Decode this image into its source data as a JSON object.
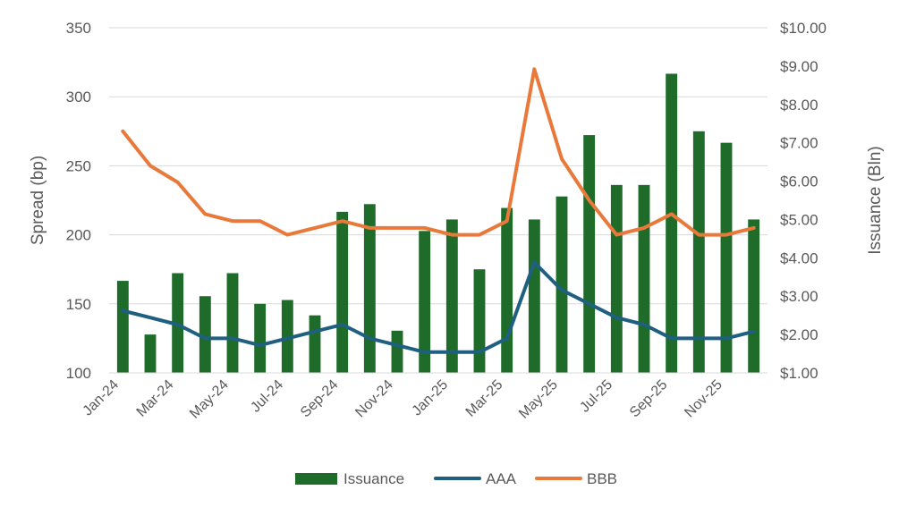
{
  "chart_data": {
    "type": "bar",
    "categories": [
      "Jan-24",
      "Feb-24",
      "Mar-24",
      "Apr-24",
      "May-24",
      "Jun-24",
      "Jul-24",
      "Aug-24",
      "Sep-24",
      "Oct-24",
      "Nov-24",
      "Dec-24",
      "Jan-25",
      "Feb-25",
      "Mar-25",
      "Apr-25",
      "May-25",
      "Jun-25",
      "Jul-25",
      "Aug-25",
      "Sep-25",
      "Oct-25",
      "Nov-25",
      "Dec-25"
    ],
    "x_tick_labels": [
      "Jan-24",
      "Mar-24",
      "May-24",
      "Jul-24",
      "Sep-24",
      "Nov-24",
      "Jan-25",
      "Mar-25",
      "May-25",
      "Jul-25",
      "Sep-25",
      "Nov-25"
    ],
    "series": [
      {
        "name": "Issuance",
        "type": "bar",
        "axis": "right",
        "color": "#1e6b2a",
        "values": [
          3.4,
          2.0,
          3.6,
          3.0,
          3.6,
          2.8,
          2.9,
          2.5,
          5.2,
          5.4,
          2.1,
          4.7,
          5.0,
          3.7,
          5.3,
          5.0,
          5.6,
          7.2,
          5.9,
          5.9,
          8.8,
          7.3,
          7.0,
          5.0
        ]
      },
      {
        "name": "AAA",
        "type": "line",
        "axis": "left",
        "color": "#1f5f7f",
        "values": [
          145,
          140,
          135,
          125,
          125,
          120,
          125,
          130,
          135,
          125,
          120,
          115,
          115,
          115,
          125,
          180,
          160,
          150,
          140,
          135,
          125,
          125,
          125,
          130
        ]
      },
      {
        "name": "BBB",
        "type": "line",
        "axis": "left",
        "color": "#e8793a",
        "values": [
          275,
          250,
          238,
          215,
          210,
          210,
          200,
          205,
          210,
          205,
          205,
          205,
          200,
          200,
          210,
          320,
          255,
          225,
          200,
          205,
          215,
          200,
          200,
          205
        ]
      }
    ],
    "ylabel": "Spread (bp)",
    "y2label": "Issuance (Bln)",
    "ylim": [
      100,
      350
    ],
    "y_ticks": [
      "100",
      "150",
      "200",
      "250",
      "300",
      "350"
    ],
    "y2lim": [
      1,
      10
    ],
    "y2_ticks": [
      "$1.00",
      "$2.00",
      "$3.00",
      "$4.00",
      "$5.00",
      "$6.00",
      "$7.00",
      "$8.00",
      "$9.00",
      "$10.00"
    ],
    "grid": true,
    "legend_position": "bottom"
  }
}
